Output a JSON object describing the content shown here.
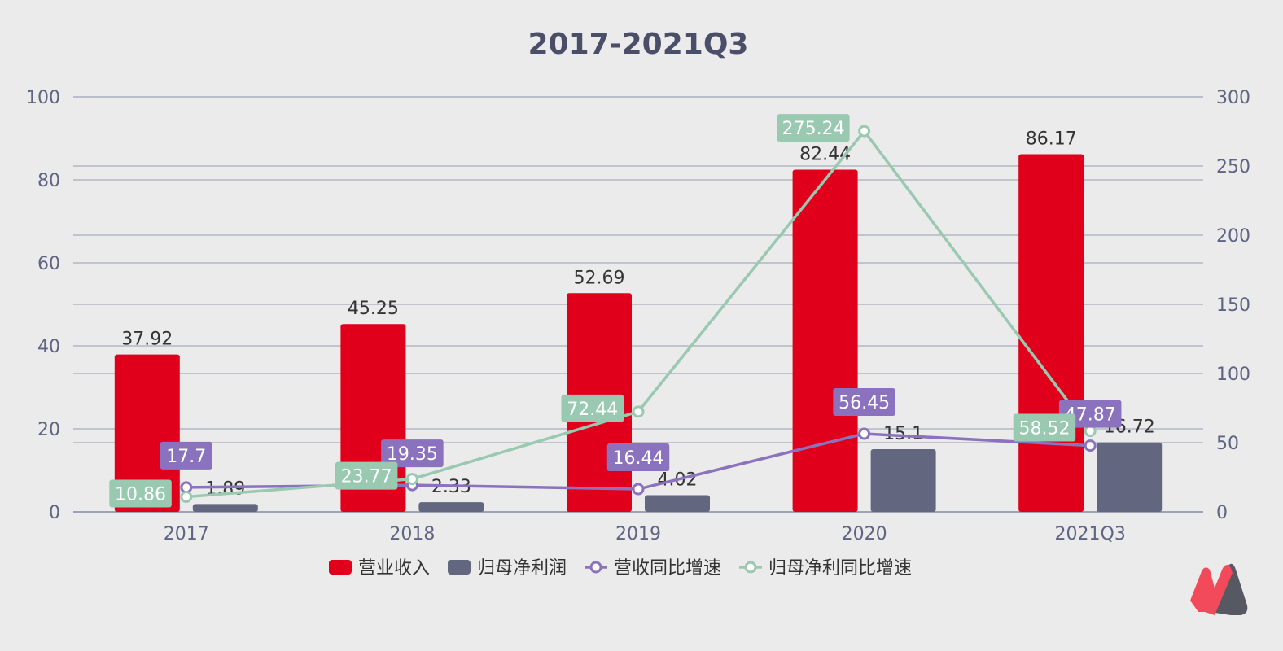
{
  "chart_data": {
    "type": "bar",
    "title": "2017-2021Q3",
    "categories": [
      "2017",
      "2018",
      "2019",
      "2020",
      "2021Q3"
    ],
    "y_left": {
      "range": [
        0,
        100
      ],
      "ticks": [
        0,
        20,
        40,
        60,
        80,
        100
      ]
    },
    "y_right": {
      "range": [
        0,
        300
      ],
      "ticks": [
        0,
        50,
        100,
        150,
        200,
        250,
        300
      ]
    },
    "grid": true,
    "legend_position": "bottom",
    "series": [
      {
        "name": "营业收入",
        "kind": "bar",
        "axis": "left",
        "color": "#e0001b",
        "values": [
          37.92,
          45.25,
          52.69,
          82.44,
          86.17
        ]
      },
      {
        "name": "归母净利润",
        "kind": "bar",
        "axis": "left",
        "color": "#62667f",
        "values": [
          1.89,
          2.33,
          4.02,
          15.1,
          16.72
        ]
      },
      {
        "name": "营收同比增速",
        "kind": "line",
        "axis": "right",
        "color": "#8b72bf",
        "values": [
          17.7,
          19.35,
          16.44,
          56.45,
          47.87
        ]
      },
      {
        "name": "归母净利同比增速",
        "kind": "line",
        "axis": "right",
        "color": "#99c9b0",
        "values": [
          10.86,
          23.77,
          72.44,
          275.24,
          58.52
        ]
      }
    ]
  },
  "logo": {
    "name": "brand-logo",
    "colors": [
      "#f24a5b",
      "#3c3e4a"
    ]
  }
}
